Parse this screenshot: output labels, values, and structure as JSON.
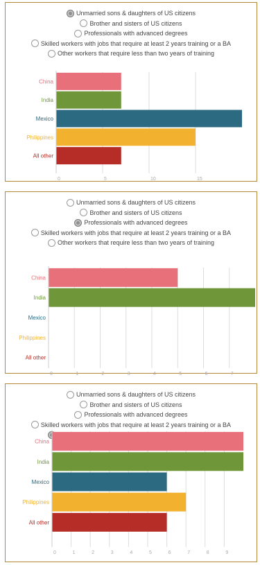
{
  "colors": {
    "China": "#e8707a",
    "India": "#6f973a",
    "Mexico": "#2b6a80",
    "Philippines": "#f2b230",
    "All other": "#b52d26",
    "panel_border": "#b5883a",
    "grid": "#dddddd"
  },
  "options": [
    "Unmarried sons & daughters of US citizens",
    "Brother and sisters of US citizens",
    "Professionals with advanced degrees",
    "Skilled workers with jobs that require at least 2 years training or a BA",
    "Other workers that require less than two years of training"
  ],
  "chart_data": [
    {
      "type": "bar",
      "selected_option": 0,
      "categories": [
        "China",
        "India",
        "Mexico",
        "Philippines",
        "All other"
      ],
      "values": [
        7,
        7,
        20,
        15,
        7
      ],
      "xticks": [
        0,
        5,
        10,
        15
      ],
      "xlim": [
        0,
        20
      ],
      "grid": true
    },
    {
      "type": "bar",
      "selected_option": 2,
      "categories": [
        "China",
        "India",
        "Mexico",
        "Philippines",
        "All other"
      ],
      "values": [
        5,
        8,
        0,
        0,
        0
      ],
      "xticks": [
        0,
        1,
        2,
        3,
        4,
        5,
        6,
        7
      ],
      "xlim": [
        0,
        8
      ],
      "grid": true
    },
    {
      "type": "bar",
      "selected_option": 4,
      "categories": [
        "China",
        "India",
        "Mexico",
        "Philippines",
        "All other"
      ],
      "values": [
        10,
        10,
        6,
        7,
        6
      ],
      "xticks": [
        0,
        1,
        2,
        3,
        4,
        5,
        6,
        7,
        8,
        9
      ],
      "xlim": [
        0,
        10
      ],
      "grid": true
    }
  ]
}
